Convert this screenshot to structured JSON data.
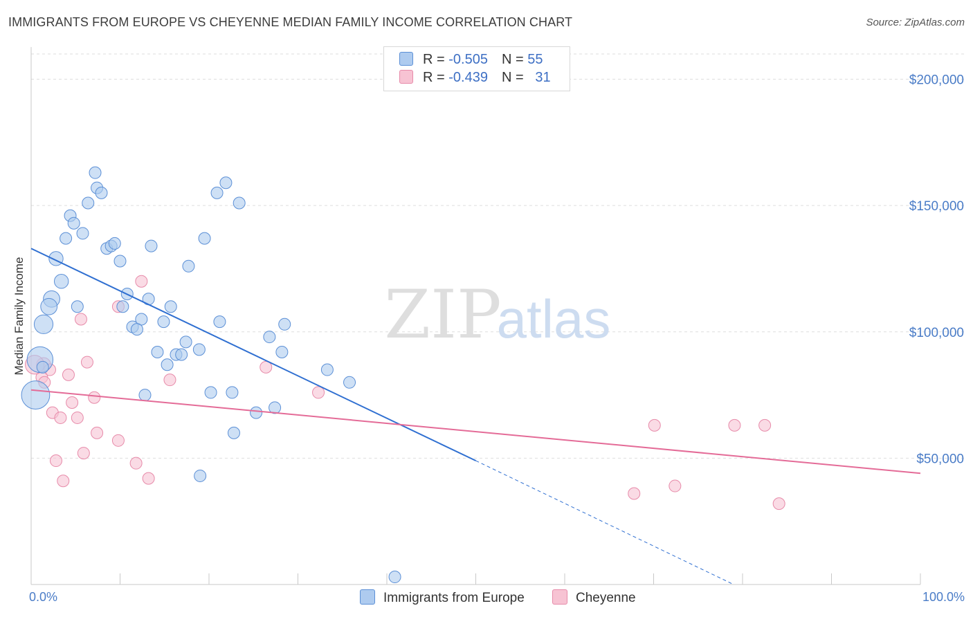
{
  "header": {
    "title": "IMMIGRANTS FROM EUROPE VS CHEYENNE MEDIAN FAMILY INCOME CORRELATION CHART",
    "source": "Source: ZipAtlas.com"
  },
  "watermark": {
    "zip": "ZIP",
    "atlas": "atlas"
  },
  "legend": {
    "rows": [
      {
        "r_label": "R = ",
        "r_value": "-0.505",
        "n_label": "N = ",
        "n_value": "55"
      },
      {
        "r_label": "R = ",
        "r_value": "-0.439",
        "n_label": "N = ",
        "n_value": "31"
      }
    ]
  },
  "colors": {
    "blue_fill": "#aecbef",
    "blue_stroke": "#5b8fd6",
    "blue_line": "#2f6fd1",
    "pink_fill": "#f7c3d3",
    "pink_stroke": "#e78aa9",
    "pink_line": "#e46b97",
    "grid": "#dddddd",
    "tick_text": "#4a7cc7"
  },
  "chart_data": {
    "type": "scatter",
    "ylabel": "Median Family Income",
    "xlim": [
      0,
      100
    ],
    "ylim": [
      0,
      210000
    ],
    "x_tick_labels": [
      "0.0%",
      "100.0%"
    ],
    "y_ticks": [
      50000,
      100000,
      150000,
      200000
    ],
    "y_tick_labels": [
      "$50,000",
      "$100,000",
      "$150,000",
      "$200,000"
    ],
    "grid": "horizontal-dashed",
    "legend_position": "bottom",
    "series": [
      {
        "name": "Immigrants from Europe",
        "color": "#aecbef",
        "trend": {
          "x0": 0,
          "y0": 133000,
          "x1": 50,
          "y1": 49000,
          "dashed_to_x": 79,
          "dashed_to_y": 0
        },
        "points": [
          [
            7.2,
            163000,
            1
          ],
          [
            7.4,
            157000,
            1
          ],
          [
            7.9,
            155000,
            1
          ],
          [
            6.4,
            151000,
            1
          ],
          [
            4.4,
            146000,
            1
          ],
          [
            4.8,
            143000,
            1
          ],
          [
            5.8,
            139000,
            1
          ],
          [
            3.9,
            137000,
            1
          ],
          [
            8.5,
            133000,
            1
          ],
          [
            9.0,
            134000,
            1
          ],
          [
            9.4,
            135000,
            1
          ],
          [
            13.5,
            134000,
            1
          ],
          [
            2.8,
            129000,
            1.2
          ],
          [
            10.0,
            128000,
            1
          ],
          [
            17.7,
            126000,
            1
          ],
          [
            3.4,
            120000,
            1.2
          ],
          [
            10.8,
            115000,
            1
          ],
          [
            13.2,
            113000,
            1
          ],
          [
            2.3,
            113000,
            1.4
          ],
          [
            2.0,
            110000,
            1.4
          ],
          [
            5.2,
            110000,
            1
          ],
          [
            10.3,
            110000,
            1
          ],
          [
            15.7,
            110000,
            1
          ],
          [
            12.4,
            105000,
            1
          ],
          [
            14.9,
            104000,
            1
          ],
          [
            11.4,
            102000,
            1
          ],
          [
            11.9,
            101000,
            1
          ],
          [
            1.4,
            103000,
            1.6
          ],
          [
            19.5,
            137000,
            1
          ],
          [
            20.9,
            155000,
            1
          ],
          [
            21.9,
            159000,
            1
          ],
          [
            23.4,
            151000,
            1
          ],
          [
            21.2,
            104000,
            1
          ],
          [
            28.5,
            103000,
            1
          ],
          [
            26.8,
            98000,
            1
          ],
          [
            17.4,
            96000,
            1
          ],
          [
            28.2,
            92000,
            1
          ],
          [
            14.2,
            92000,
            1
          ],
          [
            18.9,
            93000,
            1
          ],
          [
            16.3,
            91000,
            1
          ],
          [
            16.9,
            91000,
            1
          ],
          [
            15.3,
            87000,
            1
          ],
          [
            33.3,
            85000,
            1
          ],
          [
            35.8,
            80000,
            1
          ],
          [
            1.0,
            89000,
            2.2
          ],
          [
            12.8,
            75000,
            1
          ],
          [
            20.2,
            76000,
            1
          ],
          [
            22.6,
            76000,
            1
          ],
          [
            0.5,
            75000,
            2.4
          ],
          [
            25.3,
            68000,
            1
          ],
          [
            27.4,
            70000,
            1
          ],
          [
            22.8,
            60000,
            1
          ],
          [
            19.0,
            43000,
            1
          ],
          [
            40.9,
            3000,
            1
          ],
          [
            1.3,
            86000,
            1
          ]
        ]
      },
      {
        "name": "Cheyenne",
        "color": "#f7c3d3",
        "trend": {
          "x0": 0,
          "y0": 77000,
          "x1": 100,
          "y1": 44000
        },
        "points": [
          [
            12.4,
            120000,
            1
          ],
          [
            9.8,
            110000,
            1
          ],
          [
            5.6,
            105000,
            1
          ],
          [
            6.3,
            88000,
            1
          ],
          [
            1.4,
            87000,
            1.2
          ],
          [
            2.1,
            85000,
            1
          ],
          [
            4.2,
            83000,
            1
          ],
          [
            15.6,
            81000,
            1
          ],
          [
            1.2,
            82000,
            1
          ],
          [
            1.5,
            80000,
            1
          ],
          [
            26.4,
            86000,
            1
          ],
          [
            32.3,
            76000,
            1
          ],
          [
            7.1,
            74000,
            1
          ],
          [
            4.6,
            72000,
            1
          ],
          [
            2.4,
            68000,
            1
          ],
          [
            3.3,
            66000,
            1
          ],
          [
            5.2,
            66000,
            1
          ],
          [
            7.4,
            60000,
            1
          ],
          [
            9.8,
            57000,
            1
          ],
          [
            5.9,
            52000,
            1
          ],
          [
            2.8,
            49000,
            1
          ],
          [
            11.8,
            48000,
            1
          ],
          [
            3.6,
            41000,
            1
          ],
          [
            13.2,
            42000,
            1
          ],
          [
            70.1,
            63000,
            1
          ],
          [
            79.1,
            63000,
            1
          ],
          [
            82.5,
            63000,
            1
          ],
          [
            67.8,
            36000,
            1
          ],
          [
            72.4,
            39000,
            1
          ],
          [
            84.1,
            32000,
            1
          ],
          [
            0.4,
            87000,
            1.6
          ]
        ]
      }
    ]
  }
}
